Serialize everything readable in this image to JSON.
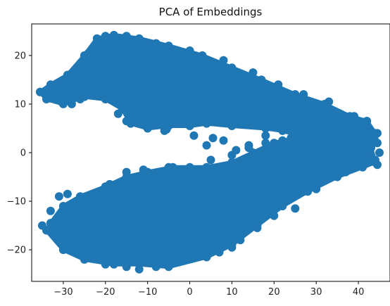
{
  "chart_data": {
    "type": "scatter",
    "title": "PCA of Embeddings",
    "xlabel": "",
    "ylabel": "",
    "xlim": [
      -37.5,
      47.5
    ],
    "ylim": [
      -26.5,
      26.5
    ],
    "xticks": [
      -30,
      -20,
      -10,
      0,
      10,
      20,
      30,
      40
    ],
    "yticks": [
      -20,
      -10,
      0,
      10,
      20
    ],
    "xtick_labels": [
      "−30",
      "−20",
      "−10",
      "0",
      "10",
      "20",
      "30",
      "40"
    ],
    "ytick_labels": [
      "−20",
      "−10",
      "0",
      "10",
      "20"
    ],
    "grid": false,
    "point_color": "#1f77b4",
    "series": [
      {
        "shape": "upper-band",
        "outline": [
          [
            -35.5,
            12.5
          ],
          [
            -33,
            14
          ],
          [
            -29,
            16
          ],
          [
            -25,
            20
          ],
          [
            -22,
            23.5
          ],
          [
            -18,
            24.2
          ],
          [
            -12,
            23.5
          ],
          [
            -5,
            22
          ],
          [
            3,
            20
          ],
          [
            10,
            17.5
          ],
          [
            17,
            15
          ],
          [
            25,
            12
          ],
          [
            32,
            10
          ],
          [
            38,
            7.5
          ],
          [
            42,
            6.5
          ],
          [
            44,
            4
          ],
          [
            44.5,
            2
          ],
          [
            42,
            1
          ],
          [
            38,
            1.5
          ],
          [
            33,
            2.5
          ],
          [
            28,
            3
          ],
          [
            22,
            4.5
          ],
          [
            18,
            5
          ],
          [
            10,
            5.5
          ],
          [
            4,
            6
          ],
          [
            0,
            5.5
          ],
          [
            -5,
            5.5
          ],
          [
            -10,
            5
          ],
          [
            -14,
            6
          ],
          [
            -16,
            9
          ],
          [
            -20,
            11
          ],
          [
            -25,
            11.5
          ],
          [
            -30,
            10
          ],
          [
            -34,
            11
          ]
        ]
      },
      {
        "shape": "lower-band",
        "outline": [
          [
            -33,
            -14.5
          ],
          [
            -30,
            -11
          ],
          [
            -26,
            -9
          ],
          [
            -20,
            -7
          ],
          [
            -15,
            -5
          ],
          [
            -10,
            -4
          ],
          [
            -4,
            -3
          ],
          [
            4,
            -3
          ],
          [
            10,
            -2
          ],
          [
            15,
            0
          ],
          [
            20,
            2
          ],
          [
            25,
            3
          ],
          [
            30,
            4
          ],
          [
            36,
            5
          ],
          [
            40,
            4
          ],
          [
            43,
            1
          ],
          [
            44,
            -2
          ],
          [
            41,
            -3
          ],
          [
            35,
            -5
          ],
          [
            28,
            -8
          ],
          [
            22,
            -11
          ],
          [
            16,
            -15
          ],
          [
            10,
            -19
          ],
          [
            4,
            -21.5
          ],
          [
            -5,
            -23.5
          ],
          [
            -12,
            -23
          ],
          [
            -18,
            -23
          ],
          [
            -25,
            -22
          ],
          [
            -30,
            -20
          ],
          [
            -34,
            -16
          ]
        ]
      }
    ],
    "scattered_points": [
      [
        -35.5,
        12.5
      ],
      [
        -33,
        11.5
      ],
      [
        -30.5,
        10.5
      ],
      [
        -28,
        10
      ],
      [
        -26,
        11
      ],
      [
        -19.5,
        21
      ],
      [
        -17,
        8
      ],
      [
        -15,
        6.5
      ],
      [
        -14,
        7
      ],
      [
        -10,
        5.5
      ],
      [
        -6,
        4.5
      ],
      [
        -5.5,
        4.8
      ],
      [
        1,
        3.5
      ],
      [
        4,
        1.5
      ],
      [
        5.5,
        3
      ],
      [
        8,
        2.5
      ],
      [
        11,
        0.5
      ],
      [
        14,
        1
      ],
      [
        18,
        3.5
      ],
      [
        22,
        2.5
      ],
      [
        26,
        1
      ],
      [
        31,
        -1
      ],
      [
        35,
        0.5
      ],
      [
        38,
        0.5
      ],
      [
        40,
        3
      ],
      [
        43,
        3.5
      ],
      [
        44.5,
        4
      ],
      [
        45,
        0
      ],
      [
        44,
        -1.5
      ],
      [
        44.5,
        -2.5
      ],
      [
        41,
        -1
      ],
      [
        39,
        -3
      ],
      [
        37,
        -4
      ],
      [
        33,
        -5
      ],
      [
        30,
        -7.5
      ],
      [
        25,
        -11.5
      ],
      [
        20,
        -13
      ],
      [
        16,
        -15.5
      ],
      [
        12,
        -18
      ],
      [
        10,
        -19.5
      ],
      [
        7,
        -20.5
      ],
      [
        -3,
        -22.5
      ],
      [
        -8,
        -23.5
      ],
      [
        -12,
        -24
      ],
      [
        -15,
        -23.5
      ],
      [
        -20,
        -23
      ],
      [
        -25,
        -21.5
      ],
      [
        -29,
        -19
      ],
      [
        -32,
        -17
      ],
      [
        -35,
        -15
      ],
      [
        -33,
        -12
      ],
      [
        -31,
        -9
      ],
      [
        -29,
        -8.5
      ],
      [
        -26,
        -11
      ],
      [
        -23,
        -8.5
      ],
      [
        -19,
        -6.5
      ],
      [
        -15,
        -4
      ],
      [
        -11,
        -3.5
      ],
      [
        -5,
        -3
      ],
      [
        0,
        -3
      ],
      [
        5,
        -1.5
      ],
      [
        10,
        -0.5
      ],
      [
        14,
        1.5
      ],
      [
        18,
        2
      ],
      [
        24,
        3
      ],
      [
        29,
        5
      ],
      [
        33,
        5.5
      ],
      [
        37,
        6
      ],
      [
        42,
        6.5
      ],
      [
        -24,
        20.5
      ],
      [
        -20,
        24
      ],
      [
        -15,
        24
      ],
      [
        -8,
        22.5
      ],
      [
        0,
        21
      ],
      [
        8,
        19
      ],
      [
        15,
        16.5
      ],
      [
        21,
        14
      ],
      [
        27,
        12
      ],
      [
        33,
        10.5
      ],
      [
        39,
        7.5
      ]
    ]
  }
}
